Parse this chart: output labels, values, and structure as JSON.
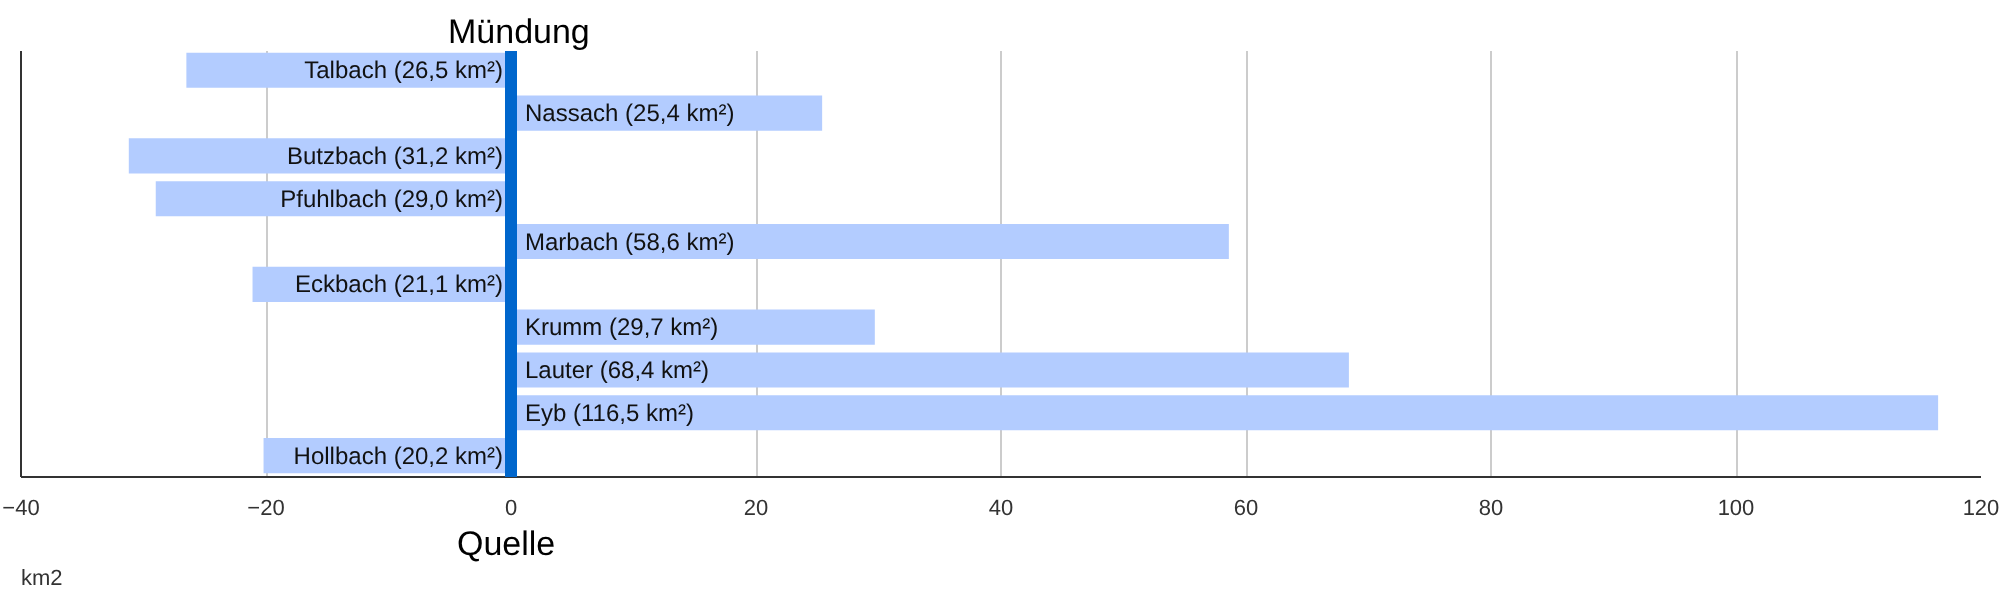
{
  "chart_data": {
    "type": "bar",
    "orientation": "horizontal",
    "xlabel": "km2",
    "categories": [
      null,
      null,
      null,
      null,
      null,
      null,
      null,
      null,
      null,
      null
    ],
    "values": [
      -26.5,
      25.4,
      -31.2,
      -29.0,
      58.6,
      -21.1,
      29.7,
      68.4,
      116.5,
      -20.2
    ],
    "value_labels": [
      "Talbach (26,5 km²)",
      "Nassach (25,4 km²)",
      "Butzbach (31,2 km²)",
      "Pfuhlbach (29,0 km²)",
      "Marbach (58,6 km²)",
      "Eckbach (21,1 km²)",
      "Krumm (29,7 km²)",
      "Lauter (68,4 km²)",
      "Eyb (116,5 km²)",
      "Hollbach (20,2 km²)"
    ],
    "color": "#b3ccff",
    "xlim": [
      -40,
      120
    ],
    "xticks": [
      -40,
      -20,
      0,
      20,
      40,
      60,
      80,
      100,
      120
    ],
    "ref_lines": [
      {
        "axis": "x",
        "value": 0,
        "color": "#0066cc"
      }
    ],
    "annotations": [
      "Mündung",
      "Quelle"
    ],
    "grid": "x",
    "tick_labels": "x"
  }
}
